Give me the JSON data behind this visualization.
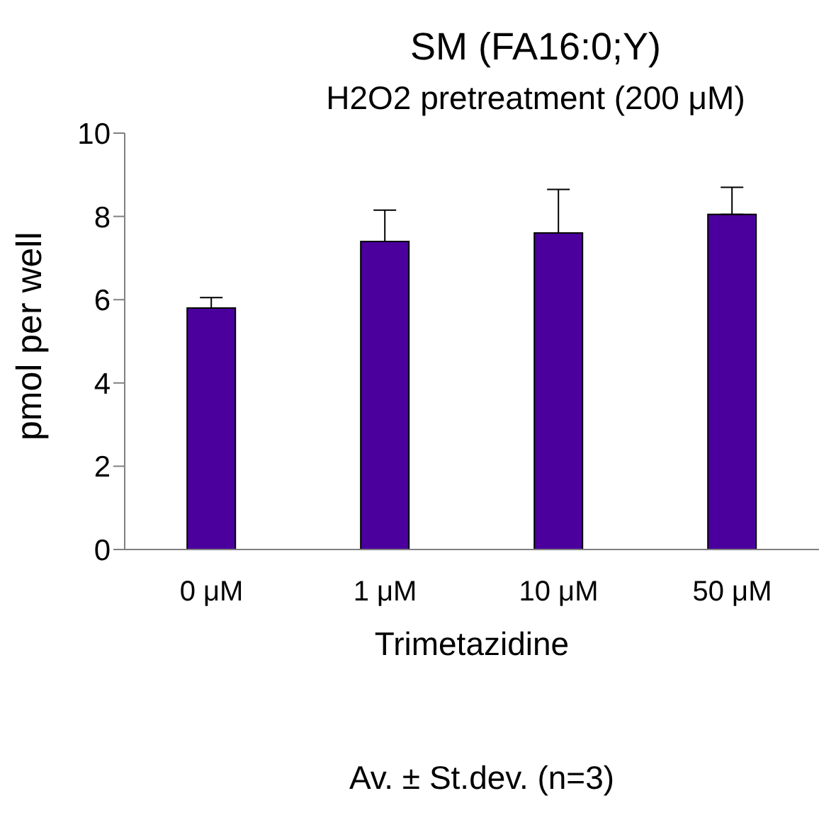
{
  "chart_data": {
    "type": "bar",
    "title": "SM (FA16:0;Y)",
    "subtitle": "H2O2 pretreatment (200 μM)",
    "xlabel": "Trimetazidine",
    "ylabel": "pmol per well",
    "annotations": [
      "Av. ± St.dev. (n=3)"
    ],
    "categories": [
      "0 μM",
      "1 μM",
      "10 μM",
      "50 μM"
    ],
    "values": [
      5.8,
      7.4,
      7.6,
      8.05
    ],
    "errors": [
      [
        5.8,
        6.05
      ],
      [
        7.4,
        8.15
      ],
      [
        7.6,
        8.65
      ],
      [
        8.05,
        8.7
      ]
    ],
    "color": "#4b009e",
    "ylim": [
      0,
      10
    ],
    "yticks": [
      0,
      2,
      4,
      6,
      8,
      10
    ],
    "grid": false
  }
}
